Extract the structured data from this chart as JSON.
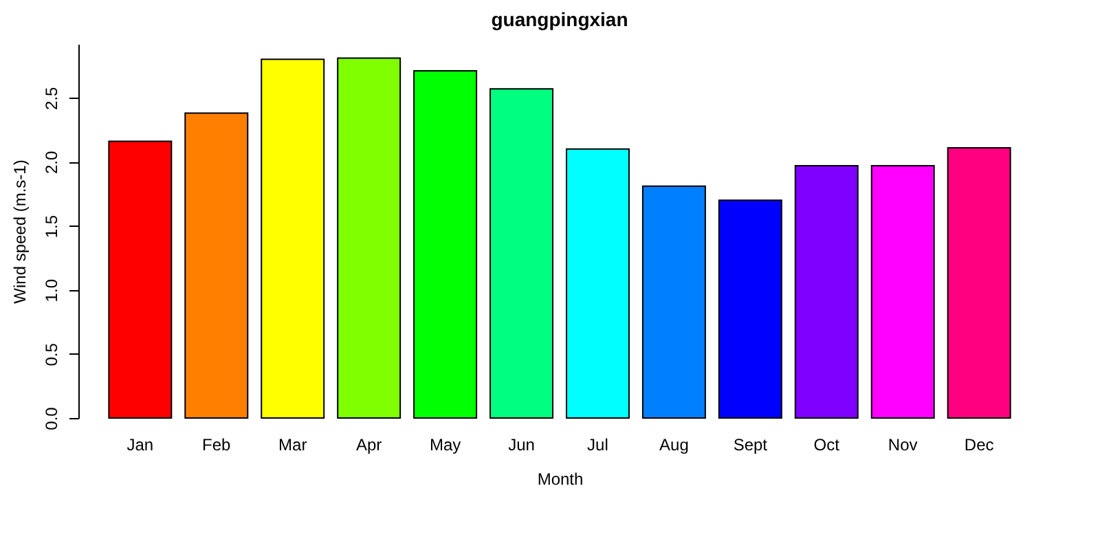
{
  "chart_data": {
    "type": "bar",
    "title": "guangpingxian",
    "xlabel": "Month",
    "ylabel": "Wind speed (m.s-1)",
    "categories": [
      "Jan",
      "Feb",
      "Mar",
      "Apr",
      "May",
      "Jun",
      "Jul",
      "Aug",
      "Sept",
      "Oct",
      "Nov",
      "Dec"
    ],
    "values": [
      2.16,
      2.38,
      2.8,
      2.81,
      2.71,
      2.57,
      2.1,
      1.81,
      1.7,
      1.97,
      1.97,
      2.11
    ],
    "colors": [
      "#ff0000",
      "#ff8000",
      "#ffff00",
      "#80ff00",
      "#00ff00",
      "#00ff80",
      "#00ffff",
      "#0080ff",
      "#0000ff",
      "#8000ff",
      "#ff00ff",
      "#ff0080"
    ],
    "ylim": [
      0,
      2.92
    ],
    "yticks": [
      {
        "value": 0,
        "label": "0.0"
      },
      0.5,
      {
        "value": 1,
        "label": "1.0"
      },
      1.5,
      {
        "value": 2,
        "label": "2.0"
      },
      2.5
    ],
    "grid": false,
    "legend": false
  }
}
